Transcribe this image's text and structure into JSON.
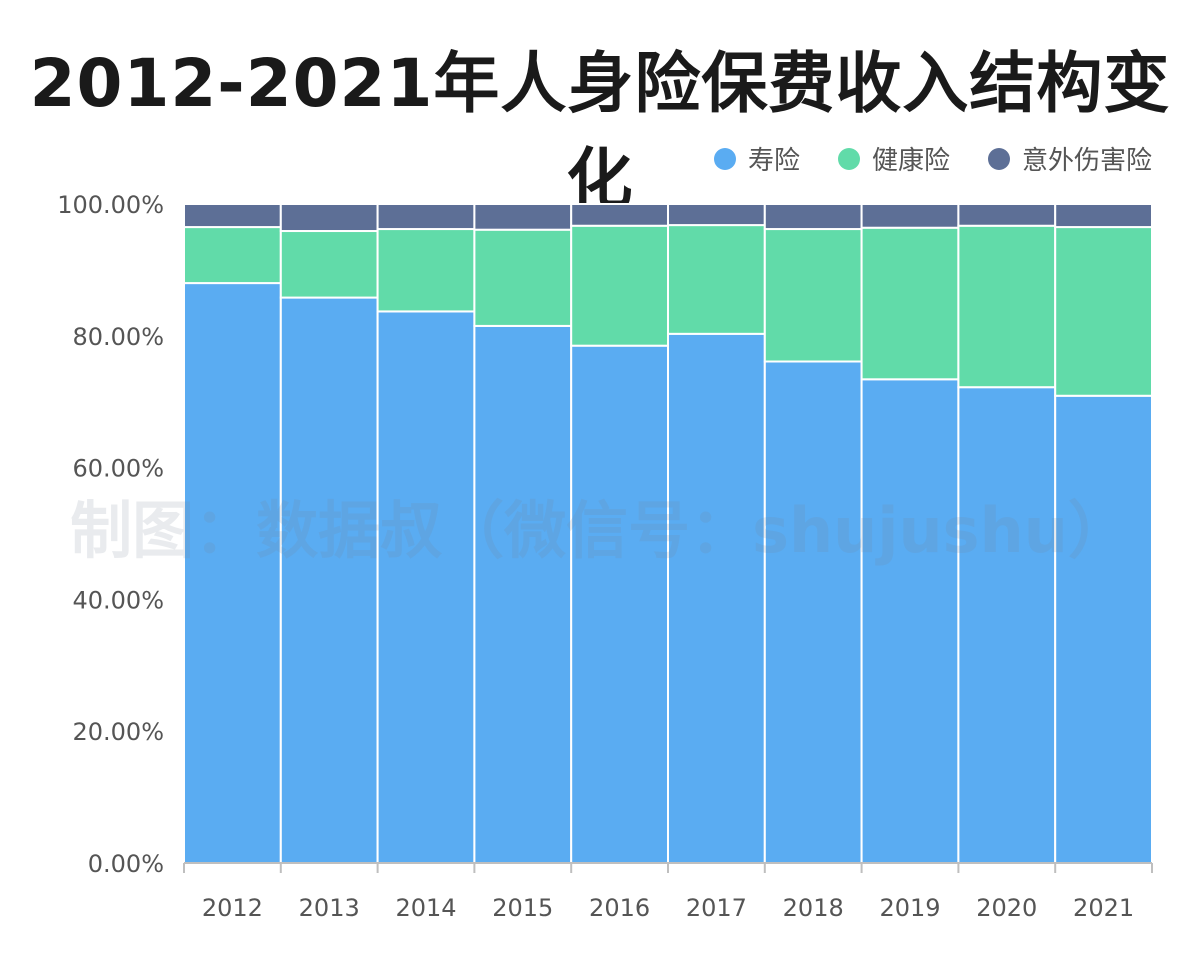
{
  "title": "2012-2021年人身险保费收入结构变化",
  "watermark": "制图：数据叔（微信号：shujushu）",
  "chart_data": {
    "type": "bar",
    "stacked": true,
    "normalized": true,
    "categories": [
      "2012",
      "2013",
      "2014",
      "2015",
      "2016",
      "2017",
      "2018",
      "2019",
      "2020",
      "2021"
    ],
    "series": [
      {
        "name": "寿险",
        "color": "#5aacf2",
        "values": [
          88.0,
          85.8,
          83.7,
          81.5,
          78.5,
          80.3,
          76.1,
          73.4,
          72.2,
          70.9
        ]
      },
      {
        "name": "健康险",
        "color": "#61dba9",
        "values": [
          8.5,
          10.1,
          12.5,
          14.6,
          18.2,
          16.5,
          20.1,
          23.0,
          24.5,
          25.6
        ]
      },
      {
        "name": "意外伤害险",
        "color": "#5d6f96",
        "values": [
          3.5,
          4.1,
          3.8,
          3.9,
          3.3,
          3.2,
          3.8,
          3.6,
          3.3,
          3.5
        ]
      }
    ],
    "yticks": [
      "0.00%",
      "20.00%",
      "40.00%",
      "60.00%",
      "80.00%",
      "100.00%"
    ],
    "ylim": [
      0,
      100
    ],
    "legend_position": "top-right"
  }
}
